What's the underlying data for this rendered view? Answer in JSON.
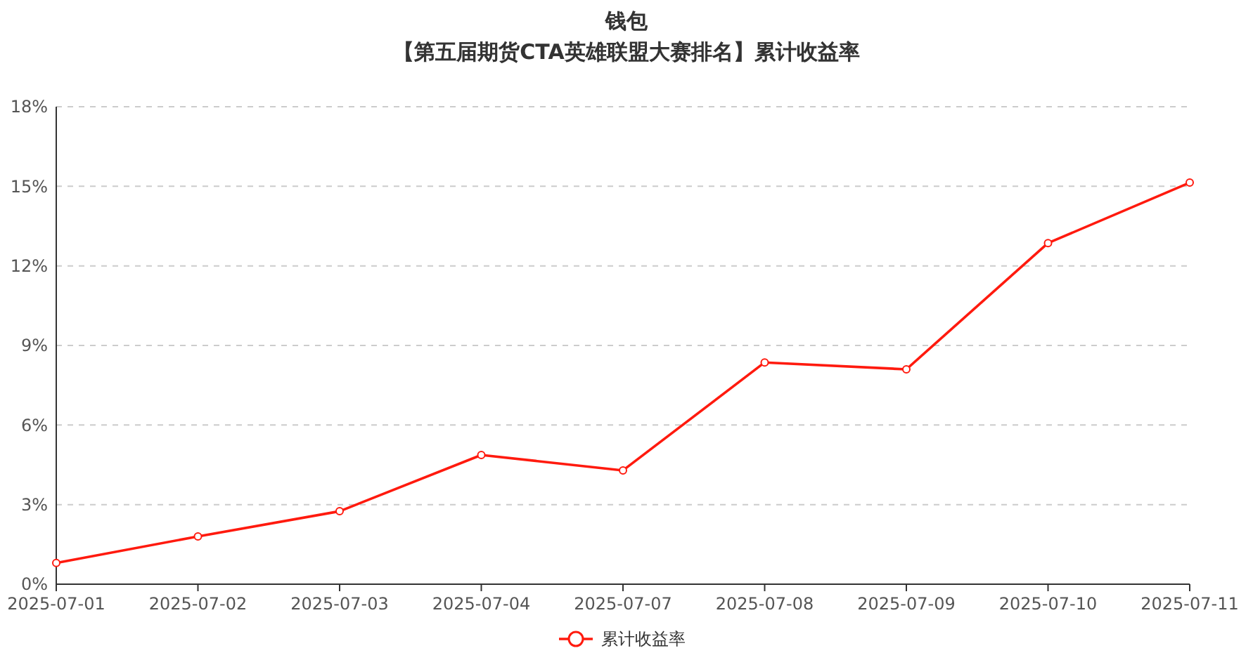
{
  "chart_data": {
    "type": "line",
    "title": "钱包",
    "subtitle": "【第五届期货CTA英雄联盟大赛排名】累计收益率",
    "categories": [
      "2025-07-01",
      "2025-07-02",
      "2025-07-03",
      "2025-07-04",
      "2025-07-07",
      "2025-07-08",
      "2025-07-09",
      "2025-07-10",
      "2025-07-11"
    ],
    "series": [
      {
        "name": "累计收益率",
        "color": "#ff1a0e",
        "values": [
          0.8,
          1.8,
          2.75,
          4.87,
          4.29,
          8.36,
          8.1,
          12.86,
          15.14
        ]
      }
    ],
    "ylim": [
      0,
      18
    ],
    "yticks": [
      {
        "value": 0,
        "label": "0%"
      },
      {
        "value": 3,
        "label": "3%"
      },
      {
        "value": 6,
        "label": "6%"
      },
      {
        "value": 9,
        "label": "9%"
      },
      {
        "value": 12,
        "label": "12%"
      },
      {
        "value": 15,
        "label": "15%"
      },
      {
        "value": 18,
        "label": "18%"
      }
    ],
    "grid": "y",
    "legend": "bottom",
    "marker": "circle",
    "line_style": "solid"
  }
}
